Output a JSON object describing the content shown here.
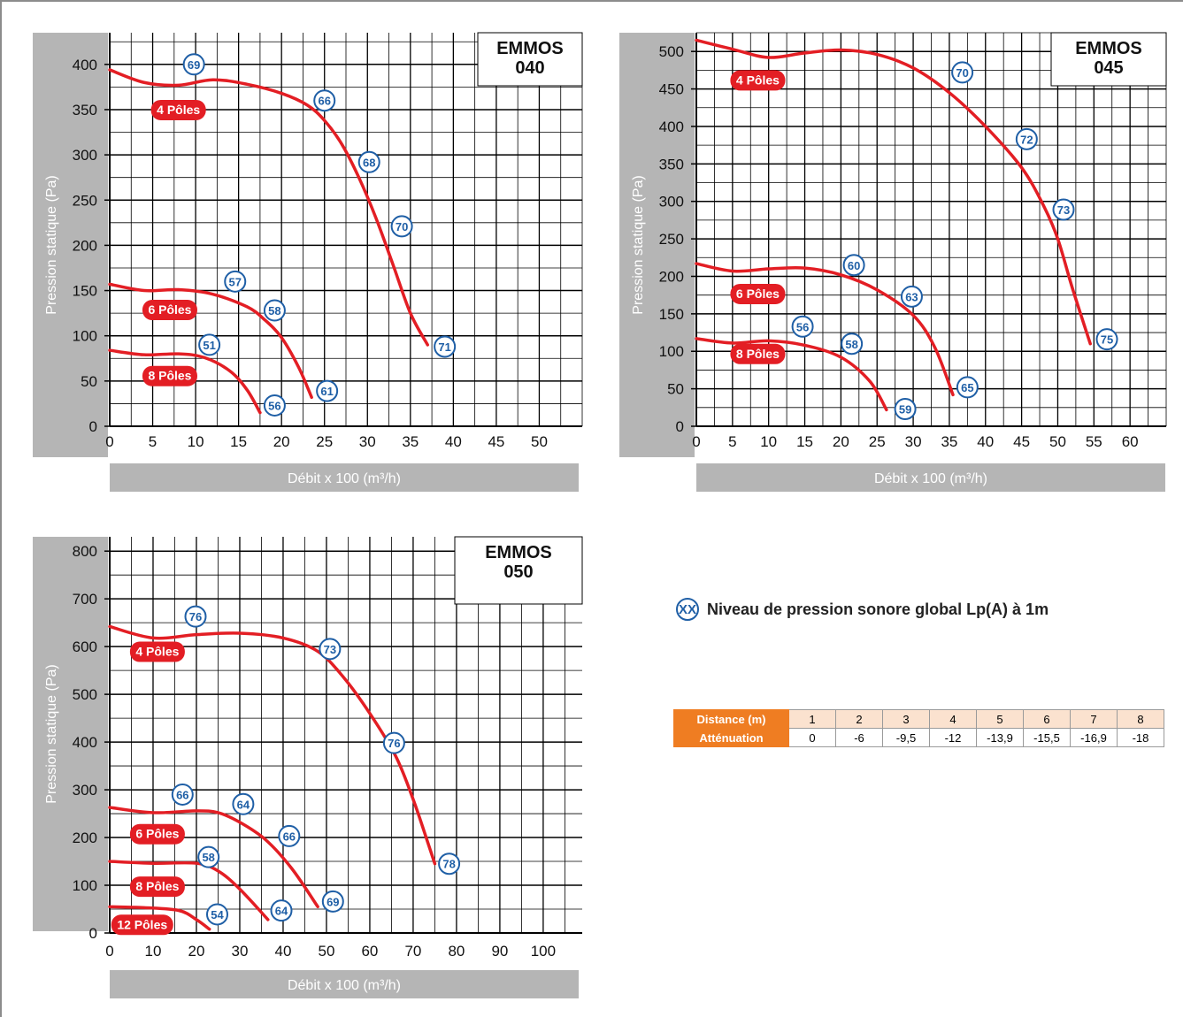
{
  "legend": {
    "badge": "XX",
    "text": "Niveau de pression sonore global  Lp(A) à 1m"
  },
  "attenuation_table": {
    "row1_label": "Distance (m)",
    "row1_values": [
      "1",
      "2",
      "3",
      "4",
      "5",
      "6",
      "7",
      "8"
    ],
    "row2_label": "Atténuation",
    "row2_values": [
      "0",
      "-6",
      "-9,5",
      "-12",
      "-13,9",
      "-15,5",
      "-16,9",
      "-18"
    ]
  },
  "colors": {
    "curve": "#e31e24",
    "badge_ring": "#1f5fa6",
    "axis_band": "#b5b5b5",
    "table_header": "#ef7d22",
    "table_cell": "#fbe2cf"
  },
  "chart_data": [
    {
      "type": "line",
      "title": "EMMOS\n040",
      "xlabel": "Débit x 100 (m³/h)",
      "ylabel": "Pression statique  (Pa)",
      "xlim": [
        0,
        55
      ],
      "ylim": [
        0,
        435
      ],
      "xticks": [
        0,
        5,
        10,
        15,
        20,
        25,
        30,
        35,
        40,
        45,
        50
      ],
      "yticks": [
        0,
        50,
        100,
        150,
        200,
        250,
        300,
        350,
        400
      ],
      "grid": true,
      "series": [
        {
          "name": "4 Pôles",
          "x": [
            0,
            4,
            8,
            12,
            16,
            20,
            23,
            25,
            27,
            29,
            31,
            33,
            35,
            37
          ],
          "y": [
            394,
            380,
            377,
            383,
            378,
            368,
            355,
            338,
            312,
            275,
            230,
            178,
            125,
            90
          ],
          "label_at": [
            8,
            350
          ],
          "noise": [
            {
              "value": "69",
              "x": 9.8,
              "y": 400
            },
            {
              "value": "66",
              "x": 25,
              "y": 360
            },
            {
              "value": "68",
              "x": 30.2,
              "y": 292
            },
            {
              "value": "70",
              "x": 34,
              "y": 221
            },
            {
              "value": "71",
              "x": 39,
              "y": 88
            }
          ]
        },
        {
          "name": "6 Pôles",
          "x": [
            0,
            4,
            8,
            12,
            16,
            18,
            20,
            22,
            23.5
          ],
          "y": [
            157,
            150,
            151,
            146,
            132,
            118,
            98,
            65,
            32
          ],
          "label_at": [
            7,
            129
          ],
          "noise": [
            {
              "value": "57",
              "x": 14.6,
              "y": 160
            },
            {
              "value": "58",
              "x": 19.2,
              "y": 128
            },
            {
              "value": "51",
              "x": 11.6,
              "y": 90
            }
          ]
        },
        {
          "name": "8 Pôles",
          "x": [
            0,
            4,
            8,
            11,
            14,
            16,
            17.5
          ],
          "y": [
            84,
            79,
            80,
            76,
            61,
            40,
            15
          ],
          "label_at": [
            7,
            56
          ],
          "noise": [
            {
              "value": "61",
              "x": 25.3,
              "y": 39
            },
            {
              "value": "56",
              "x": 19.2,
              "y": 23
            }
          ]
        }
      ]
    },
    {
      "type": "line",
      "title": "EMMOS\n045",
      "xlabel": "Débit x 100 (m³/h)",
      "ylabel": "Pression statique  (Pa)",
      "xlim": [
        0,
        65
      ],
      "ylim": [
        0,
        525
      ],
      "xticks": [
        0,
        5,
        10,
        15,
        20,
        25,
        30,
        35,
        40,
        45,
        50,
        55,
        60
      ],
      "yticks": [
        0,
        50,
        100,
        150,
        200,
        250,
        300,
        350,
        400,
        450,
        500
      ],
      "grid": true,
      "series": [
        {
          "name": "4 Pôles",
          "x": [
            0,
            5,
            10,
            15,
            20,
            25,
            30,
            35,
            40,
            45,
            48,
            50,
            52,
            54.5
          ],
          "y": [
            515,
            503,
            492,
            498,
            502,
            496,
            478,
            445,
            400,
            345,
            295,
            250,
            185,
            110
          ],
          "label_at": [
            8.5,
            462
          ],
          "noise": [
            {
              "value": "70",
              "x": 36.8,
              "y": 472
            },
            {
              "value": "72",
              "x": 45.7,
              "y": 383
            },
            {
              "value": "73",
              "x": 50.8,
              "y": 289
            },
            {
              "value": "75",
              "x": 56.8,
              "y": 116
            }
          ]
        },
        {
          "name": "6 Pôles",
          "x": [
            0,
            5,
            10,
            15,
            20,
            25,
            30,
            33,
            35.5
          ],
          "y": [
            217,
            207,
            210,
            211,
            202,
            182,
            148,
            105,
            42
          ],
          "label_at": [
            8.5,
            177
          ],
          "noise": [
            {
              "value": "60",
              "x": 21.8,
              "y": 215
            },
            {
              "value": "63",
              "x": 29.8,
              "y": 173
            },
            {
              "value": "65",
              "x": 37.5,
              "y": 52
            }
          ]
        },
        {
          "name": "8 Pôles",
          "x": [
            0,
            5,
            10,
            15,
            20,
            24,
            26.3
          ],
          "y": [
            117,
            111,
            114,
            108,
            92,
            60,
            22
          ],
          "label_at": [
            8.5,
            97
          ],
          "noise": [
            {
              "value": "56",
              "x": 14.7,
              "y": 133
            },
            {
              "value": "58",
              "x": 21.5,
              "y": 110
            },
            {
              "value": "59",
              "x": 28.9,
              "y": 23
            }
          ]
        }
      ]
    },
    {
      "type": "line",
      "title": "EMMOS\n050",
      "xlabel": "Débit x 100 (m³/h)",
      "ylabel": "Pression statique  (Pa)",
      "xlim": [
        0,
        109
      ],
      "ylim": [
        0,
        830
      ],
      "xticks": [
        0,
        10,
        20,
        30,
        40,
        50,
        60,
        70,
        80,
        90,
        100
      ],
      "yticks": [
        0,
        100,
        200,
        300,
        400,
        500,
        600,
        700,
        800
      ],
      "grid": true,
      "series": [
        {
          "name": "4 Pôles",
          "x": [
            0,
            10,
            20,
            30,
            40,
            48,
            54,
            60,
            66,
            70,
            73,
            75
          ],
          "y": [
            642,
            618,
            625,
            628,
            618,
            590,
            535,
            460,
            370,
            280,
            200,
            145
          ],
          "label_at": [
            11,
            590
          ],
          "noise": [
            {
              "value": "76",
              "x": 19.8,
              "y": 663
            },
            {
              "value": "73",
              "x": 50.8,
              "y": 595
            },
            {
              "value": "76",
              "x": 65.6,
              "y": 398
            },
            {
              "value": "78",
              "x": 78.3,
              "y": 145
            }
          ]
        },
        {
          "name": "6 Pôles",
          "x": [
            0,
            10,
            20,
            25,
            30,
            36,
            42,
            48
          ],
          "y": [
            263,
            252,
            256,
            252,
            232,
            195,
            135,
            55
          ],
          "label_at": [
            11,
            208
          ],
          "noise": [
            {
              "value": "66",
              "x": 16.8,
              "y": 290
            },
            {
              "value": "64",
              "x": 30.8,
              "y": 270
            },
            {
              "value": "66",
              "x": 41.4,
              "y": 203
            },
            {
              "value": "69",
              "x": 51.5,
              "y": 66
            }
          ]
        },
        {
          "name": "8 Pôles",
          "x": [
            0,
            10,
            20,
            25,
            30,
            36.5
          ],
          "y": [
            150,
            146,
            146,
            130,
            92,
            28
          ],
          "label_at": [
            11,
            98
          ],
          "noise": [
            {
              "value": "58",
              "x": 22.8,
              "y": 159
            },
            {
              "value": "64",
              "x": 39.6,
              "y": 47
            }
          ]
        },
        {
          "name": "12 Pôles",
          "x": [
            0,
            8,
            16,
            20,
            23
          ],
          "y": [
            55,
            53,
            47,
            28,
            8
          ],
          "label_at": [
            7.5,
            18
          ],
          "noise": [
            {
              "value": "54",
              "x": 24.8,
              "y": 39
            }
          ]
        }
      ]
    }
  ]
}
